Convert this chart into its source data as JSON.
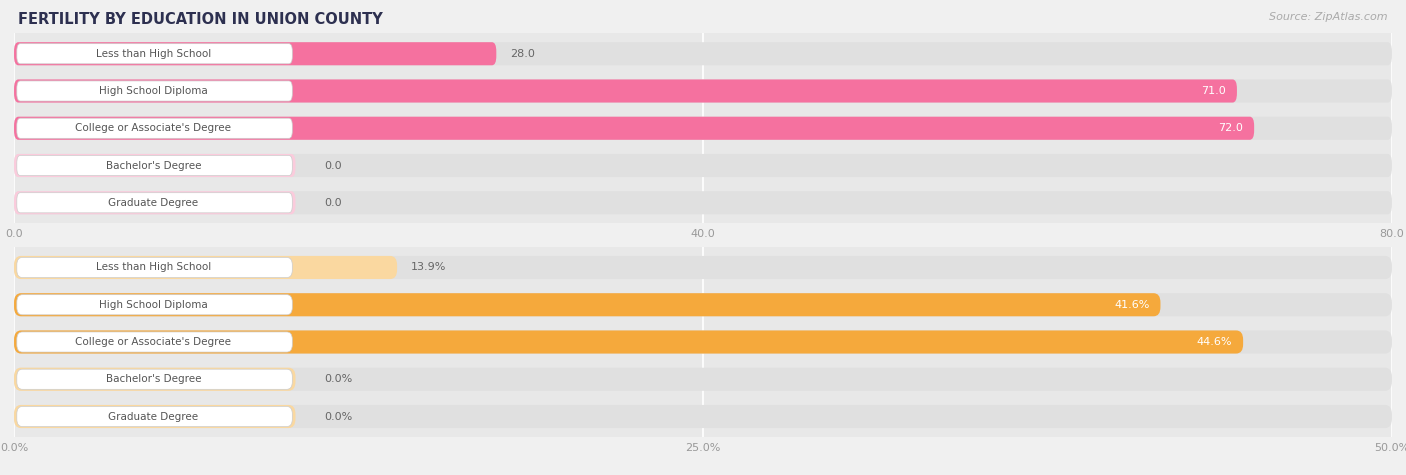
{
  "title": "FERTILITY BY EDUCATION IN UNION COUNTY",
  "source": "Source: ZipAtlas.com",
  "chart1": {
    "categories": [
      "Less than High School",
      "High School Diploma",
      "College or Associate's Degree",
      "Bachelor's Degree",
      "Graduate Degree"
    ],
    "values": [
      28.0,
      71.0,
      72.0,
      0.0,
      0.0
    ],
    "bar_color_main": "#F5719F",
    "bar_color_light": "#FBCBDC",
    "xlim_max": 80,
    "xticks": [
      0.0,
      40.0,
      80.0
    ],
    "xtick_labels": [
      "0.0",
      "40.0",
      "80.0"
    ],
    "value_labels": [
      "28.0",
      "71.0",
      "72.0",
      "0.0",
      "0.0"
    ],
    "value_inside": [
      false,
      true,
      true,
      false,
      false
    ]
  },
  "chart2": {
    "categories": [
      "Less than High School",
      "High School Diploma",
      "College or Associate's Degree",
      "Bachelor's Degree",
      "Graduate Degree"
    ],
    "values": [
      13.9,
      41.6,
      44.6,
      0.0,
      0.0
    ],
    "bar_color_main": "#F5A93C",
    "bar_color_light": "#FAD8A0",
    "xlim_max": 50,
    "xticks": [
      0.0,
      25.0,
      50.0
    ],
    "xtick_labels": [
      "0.0%",
      "25.0%",
      "50.0%"
    ],
    "value_labels": [
      "13.9%",
      "41.6%",
      "44.6%",
      "0.0%",
      "0.0%"
    ],
    "value_inside": [
      false,
      true,
      true,
      false,
      false
    ]
  },
  "fig_bg": "#f0f0f0",
  "chart_bg": "#e8e8e8",
  "bar_bg_color": "#e0e0e0",
  "label_box_color": "#ffffff",
  "label_text_color": "#555555",
  "title_color": "#2d3050",
  "source_color": "#aaaaaa",
  "value_inside_color": "#ffffff",
  "value_outside_color": "#666666",
  "label_fontsize": 7.5,
  "value_fontsize": 8,
  "title_fontsize": 10.5,
  "source_fontsize": 8
}
